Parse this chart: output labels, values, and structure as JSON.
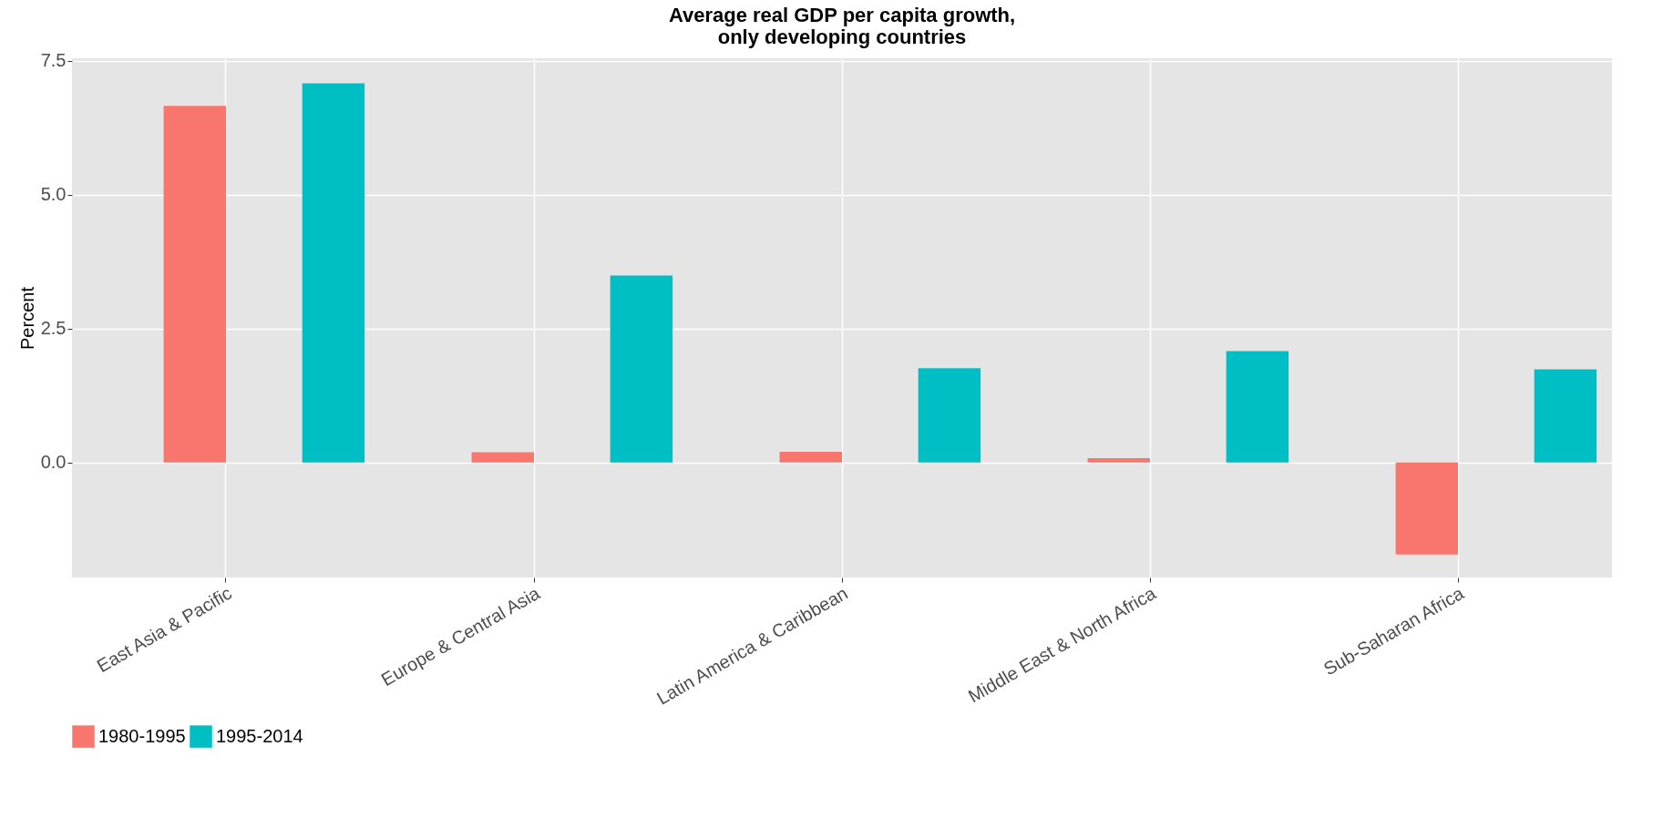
{
  "chart_data": {
    "type": "bar",
    "title": [
      "Average real GDP per capita growth,",
      "only developing countries"
    ],
    "ylabel": "Percent",
    "categories": [
      "East Asia & Pacific",
      "Europe & Central Asia",
      "Latin America & Caribbean",
      "Middle East & North Africa",
      "Sub-Saharan Africa"
    ],
    "series": [
      {
        "name": "1980-1995",
        "color": "#f8766d",
        "values": [
          6.66,
          0.19,
          0.2,
          0.08,
          -1.72
        ]
      },
      {
        "name": "1995-2014",
        "color": "#00bfc4",
        "values": [
          7.08,
          3.49,
          1.76,
          2.08,
          1.74
        ]
      }
    ],
    "ylim": [
      -2.15,
      7.55
    ],
    "yticks": [
      {
        "value": 0,
        "label": "0.0"
      },
      {
        "value": 2.5,
        "label": "2.5"
      },
      {
        "value": 5,
        "label": "5.0"
      },
      {
        "value": 7.5,
        "label": "7.5"
      }
    ],
    "grid": true,
    "legend": "bottom"
  }
}
